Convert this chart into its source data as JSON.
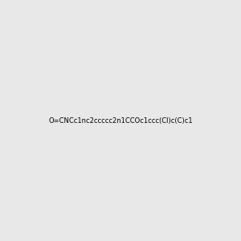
{
  "smiles": "O=CNCc1nc2ccccc2n1CCOc1ccc(Cl)c(C)c1",
  "title": "",
  "background_color": "#e8e8e8",
  "figure_size": [
    3.0,
    3.0
  ],
  "dpi": 100
}
